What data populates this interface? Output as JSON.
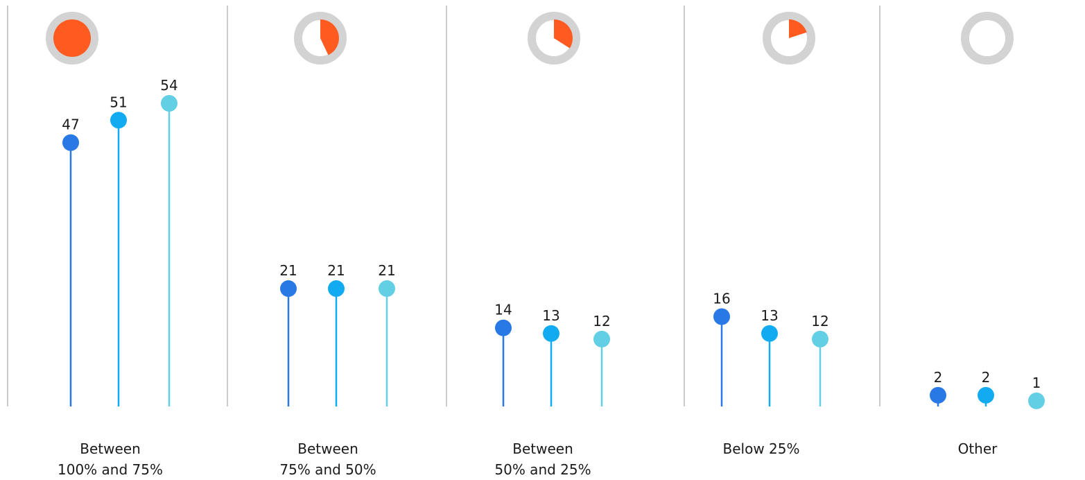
{
  "chart_data": {
    "type": "lollipop",
    "title": "",
    "xlabel": "",
    "ylabel": "",
    "ylim": [
      0,
      60
    ],
    "grid": false,
    "legend": "none",
    "colors": {
      "series": [
        "#2879e5",
        "#12abf2",
        "#62cfe5"
      ],
      "pie_fill": "#ff5a1f",
      "pie_ring": "#d3d3d3",
      "divider": "#9a9a9a"
    },
    "categories": [
      {
        "label_lines": [
          "Between",
          "100% and 75%"
        ],
        "pie_fraction": 1.0
      },
      {
        "label_lines": [
          "Between",
          "75% and 50%"
        ],
        "pie_fraction": 0.43
      },
      {
        "label_lines": [
          "Between",
          "50% and 25%"
        ],
        "pie_fraction": 0.34
      },
      {
        "label_lines": [
          "Below 25%"
        ],
        "pie_fraction": 0.2
      },
      {
        "label_lines": [
          "Other"
        ],
        "pie_fraction": 0.0
      }
    ],
    "series": [
      {
        "values": [
          47,
          21,
          14,
          16,
          2
        ]
      },
      {
        "values": [
          51,
          21,
          13,
          13,
          2
        ]
      },
      {
        "values": [
          54,
          21,
          12,
          12,
          1
        ]
      }
    ]
  }
}
